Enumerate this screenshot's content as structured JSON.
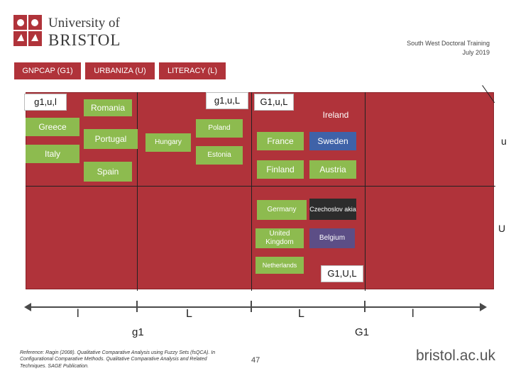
{
  "header": {
    "university_line1": "University of",
    "university_line2": "BRISTOL",
    "right_line1": "South West Doctoral Training",
    "right_line2": "July 2019"
  },
  "tabs": [
    {
      "label": "GNPCAP (G1)"
    },
    {
      "label": "URBANIZA (U)"
    },
    {
      "label": "LITERACY (L)"
    }
  ],
  "configs": {
    "top_left": "g1,u,l",
    "top_mid": "g1,u,L",
    "top_right": "G1,u,L",
    "bottom_right": "G1,U,L"
  },
  "countries": {
    "romania": "Romania",
    "greece": "Greece",
    "portugal": "Portugal",
    "italy": "Italy",
    "spain": "Spain",
    "poland": "Poland",
    "hungary": "Hungary",
    "estonia": "Estonia",
    "ireland": "Ireland",
    "france": "France",
    "sweden": "Sweden",
    "finland": "Finland",
    "austria": "Austria",
    "germany": "Germany",
    "czechoslovakia": "Czechoslov akia",
    "uk": "United Kingdom",
    "belgium": "Belgium",
    "netherlands": "Netherlands"
  },
  "axis": {
    "u_lower": "u",
    "u_upper": "U",
    "l_marks": [
      "l",
      "L",
      "L",
      "l"
    ],
    "g_lower": "g1",
    "g_upper": "G1"
  },
  "footer": {
    "reference_line1": "Reference: Ragin (2008). Qualitative Comparative Analysis using Fuzzy Sets (fsQCA). In",
    "reference_line2": "Configurational Comparative Methods. Qualitative Comparative Analysis and Related",
    "reference_line3": "Techniques. SAGE Publication.",
    "page_number": "47",
    "site": "bristol.ac.uk"
  },
  "colors": {
    "red": "#b0333a",
    "green": "#8dbb4f",
    "blue": "#3f62a8",
    "purple": "#5c4e86"
  }
}
